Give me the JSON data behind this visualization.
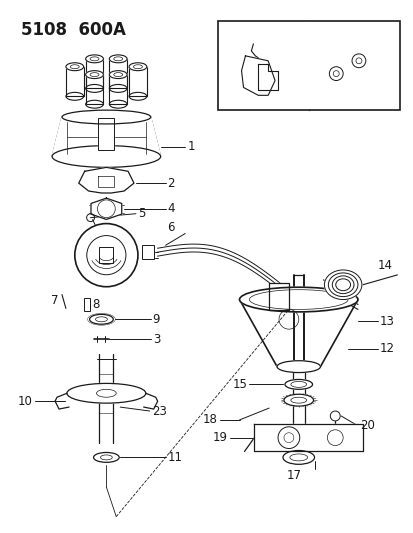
{
  "title": "5108  600A",
  "bg_color": "#ffffff",
  "line_color": "#1a1a1a",
  "title_fontsize": 12,
  "label_fontsize": 8.5
}
